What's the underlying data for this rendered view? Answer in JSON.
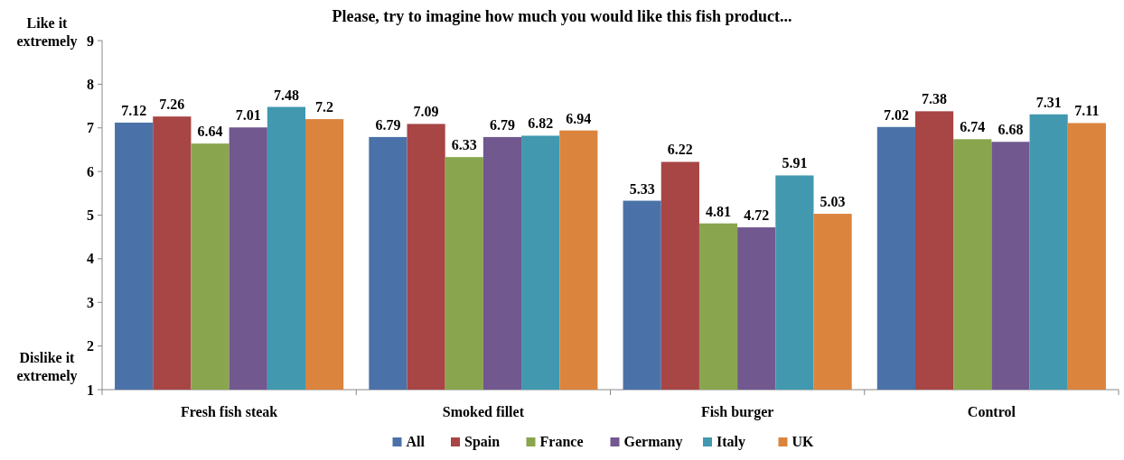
{
  "chart_data": {
    "type": "bar",
    "title": "Please, try to imagine how much you would like this fish product...",
    "categories": [
      "Fresh fish steak",
      "Smoked fillet",
      "Fish burger",
      "Control"
    ],
    "series": [
      {
        "name": "All",
        "color": "#4a72a8",
        "values": [
          7.12,
          6.79,
          5.33,
          7.02
        ]
      },
      {
        "name": "Spain",
        "color": "#a84545",
        "values": [
          7.26,
          7.09,
          6.22,
          7.38
        ]
      },
      {
        "name": "France",
        "color": "#89a54e",
        "values": [
          6.64,
          6.33,
          4.81,
          6.74
        ]
      },
      {
        "name": "Germany",
        "color": "#71588f",
        "values": [
          7.01,
          6.79,
          4.72,
          6.68
        ]
      },
      {
        "name": "Italy",
        "color": "#4198af",
        "values": [
          7.48,
          6.82,
          5.91,
          7.31
        ]
      },
      {
        "name": "UK",
        "color": "#db843d",
        "values": [
          7.2,
          6.94,
          5.03,
          7.11
        ]
      }
    ],
    "ylim": [
      1,
      9
    ],
    "yticks": [
      1,
      2,
      3,
      4,
      5,
      6,
      7,
      8,
      9
    ],
    "annotations": [
      "Like it extremely",
      "Dislike it extremely"
    ],
    "data_labels": true,
    "legend": "bottom",
    "grid": false
  }
}
